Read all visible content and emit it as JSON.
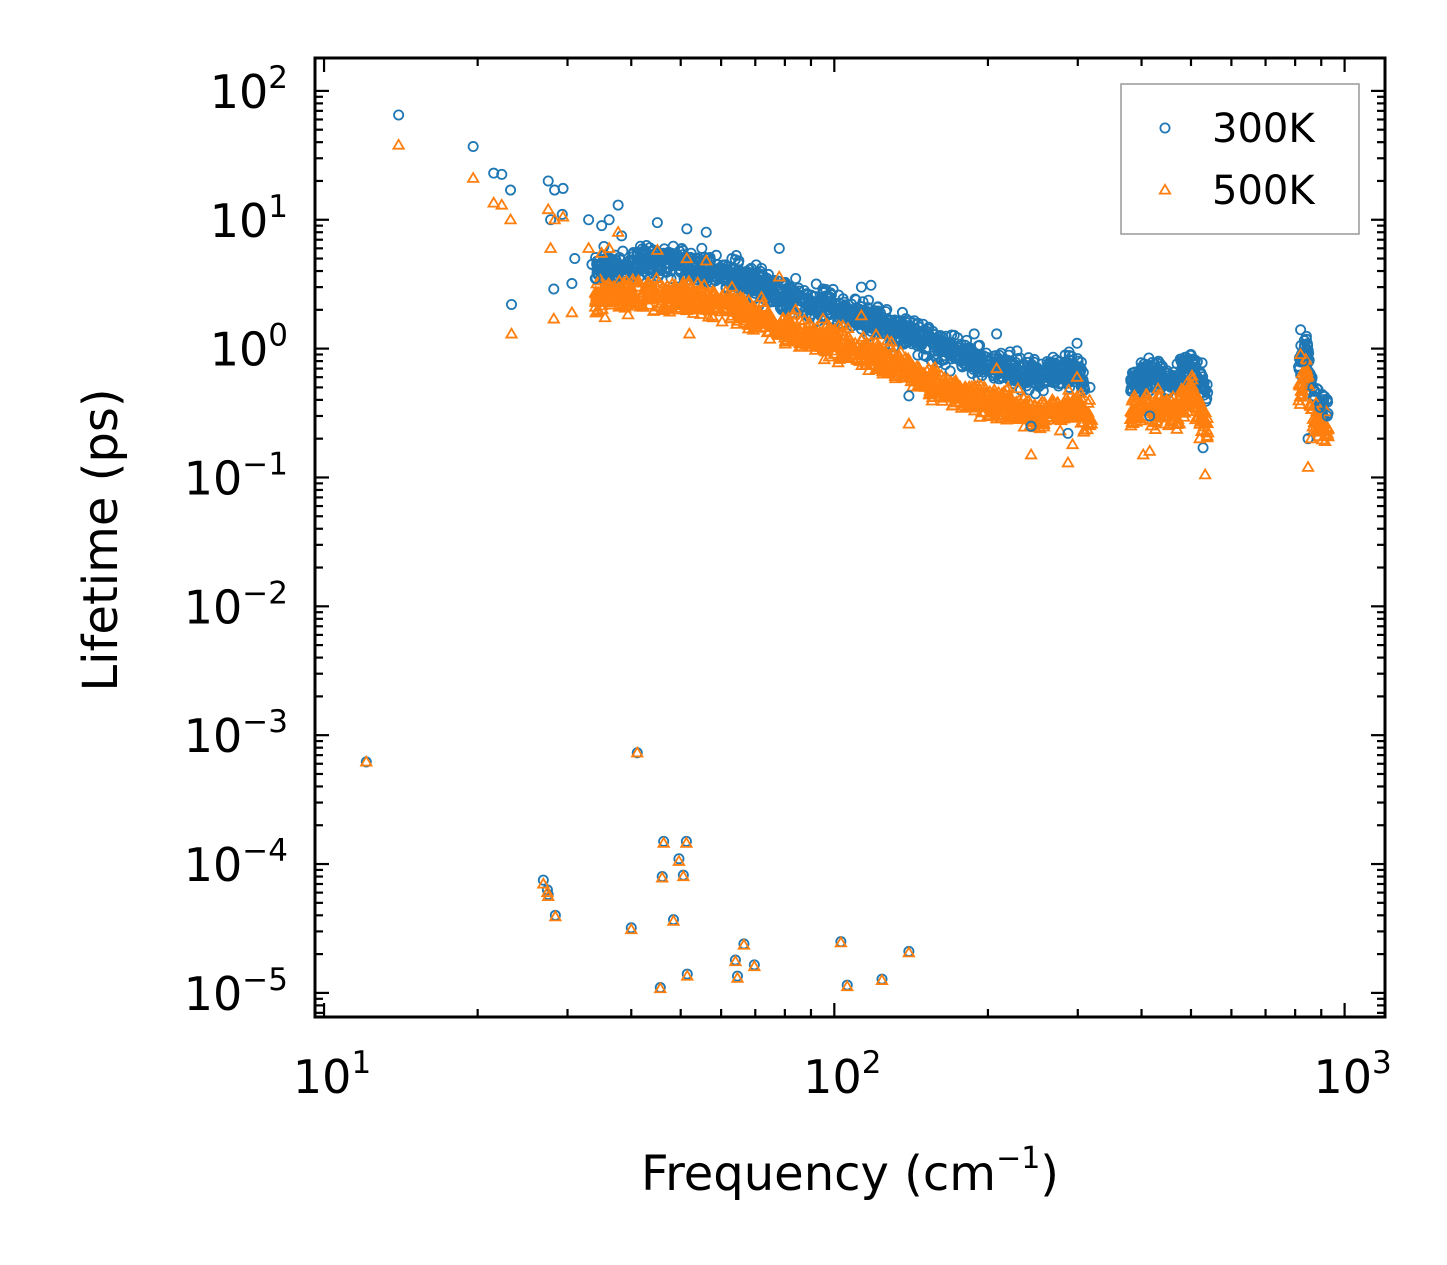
{
  "chart_data": {
    "type": "scatter",
    "title": "",
    "xlabel": "Frequency (cm",
    "xlabel_sup": "−1",
    "xlabel_close": ")",
    "ylabel": "Lifetime (ps)",
    "xscale": "log",
    "yscale": "log",
    "xlim": [
      9.6,
      1200
    ],
    "ylim": [
      6.5e-06,
      180
    ],
    "x_ticks": [
      {
        "base": "10",
        "exp": "1"
      },
      {
        "base": "10",
        "exp": "2"
      },
      {
        "base": "10",
        "exp": "3"
      }
    ],
    "y_ticks": [
      {
        "base": "10",
        "exp": "2"
      },
      {
        "base": "10",
        "exp": "1"
      },
      {
        "base": "10",
        "exp": "0"
      },
      {
        "base": "10",
        "exp": "−1"
      },
      {
        "base": "10",
        "exp": "−2"
      },
      {
        "base": "10",
        "exp": "−3"
      },
      {
        "base": "10",
        "exp": "−4"
      },
      {
        "base": "10",
        "exp": "−5"
      }
    ],
    "legend_position": "top-right",
    "series": [
      {
        "name": "300K",
        "marker": "circle",
        "color": "#1f77b4",
        "points": [
          [
            14.0,
            65
          ],
          [
            19.6,
            37
          ],
          [
            21.5,
            23
          ],
          [
            22.3,
            22.5
          ],
          [
            23.2,
            17
          ],
          [
            23.3,
            2.2
          ],
          [
            27.5,
            20
          ],
          [
            28.3,
            17
          ],
          [
            29.4,
            17.5
          ],
          [
            29.3,
            11
          ],
          [
            27.8,
            10
          ],
          [
            33.0,
            10
          ],
          [
            35.0,
            9
          ],
          [
            36.2,
            10
          ],
          [
            37.7,
            13
          ],
          [
            38.3,
            7.5
          ],
          [
            31.0,
            5
          ],
          [
            33.5,
            4.5
          ],
          [
            28.2,
            2.9
          ],
          [
            30.6,
            3.2
          ],
          [
            34.0,
            3.5
          ],
          [
            45.0,
            9.5
          ],
          [
            51.4,
            8.5
          ],
          [
            56.1,
            8
          ],
          [
            48.0,
            5.5
          ],
          [
            55.0,
            6
          ],
          [
            63.0,
            5
          ],
          [
            65.0,
            4.8
          ],
          [
            72.0,
            4.2
          ],
          [
            78.0,
            6
          ],
          [
            84.0,
            3.5
          ],
          [
            95.0,
            2.9
          ],
          [
            102.0,
            2.6
          ],
          [
            113.0,
            3
          ],
          [
            118.0,
            3.1
          ],
          [
            131.0,
            1.5
          ],
          [
            140.0,
            0.43
          ],
          [
            153.0,
            1.2
          ],
          [
            176.0,
            0.9
          ],
          [
            188.0,
            1.3
          ],
          [
            208.0,
            1.3
          ],
          [
            228.0,
            0.7
          ],
          [
            243.0,
            0.25
          ],
          [
            263.0,
            0.7
          ],
          [
            287.0,
            0.22
          ],
          [
            299.0,
            1.1
          ],
          [
            317.0,
            0.5
          ],
          [
            390.0,
            0.6
          ],
          [
            403.0,
            0.7
          ],
          [
            415.0,
            0.3
          ],
          [
            460.0,
            0.6
          ],
          [
            483.0,
            0.8
          ],
          [
            500.0,
            0.9
          ],
          [
            528.0,
            0.17
          ],
          [
            820.0,
            1.4
          ],
          [
            830.0,
            0.8
          ],
          [
            848.0,
            0.2
          ],
          [
            867.0,
            0.5
          ],
          [
            895.0,
            0.35
          ],
          [
            925.0,
            0.3
          ],
          [
            12.1,
            0.00062
          ],
          [
            41.1,
            0.00073
          ],
          [
            26.9,
            7.5e-05
          ],
          [
            27.4,
            6.3e-05
          ],
          [
            27.5,
            5.8e-05
          ],
          [
            28.4,
            4e-05
          ],
          [
            40.0,
            3.2e-05
          ],
          [
            45.6,
            1.1e-05
          ],
          [
            46.3,
            0.00015
          ],
          [
            46.0,
            8e-05
          ],
          [
            48.4,
            3.7e-05
          ],
          [
            49.6,
            0.00011
          ],
          [
            50.6,
            8.2e-05
          ],
          [
            51.3,
            0.00015
          ],
          [
            51.5,
            1.4e-05
          ],
          [
            64.0,
            1.8e-05
          ],
          [
            64.6,
            1.35e-05
          ],
          [
            66.5,
            2.4e-05
          ],
          [
            69.7,
            1.65e-05
          ],
          [
            103.0,
            2.5e-05
          ],
          [
            106.0,
            1.15e-05
          ],
          [
            124.0,
            1.28e-05
          ],
          [
            140.0,
            2.1e-05
          ]
        ]
      },
      {
        "name": "500K",
        "marker": "triangle",
        "color": "#ff7f0e",
        "points": [
          [
            14.0,
            38
          ],
          [
            19.6,
            21
          ],
          [
            21.5,
            13.5
          ],
          [
            22.3,
            13
          ],
          [
            23.2,
            10
          ],
          [
            23.3,
            1.3
          ],
          [
            27.5,
            12
          ],
          [
            28.3,
            10
          ],
          [
            29.4,
            10.5
          ],
          [
            27.8,
            6
          ],
          [
            33.0,
            6
          ],
          [
            35.0,
            5.5
          ],
          [
            36.2,
            6
          ],
          [
            37.7,
            8
          ],
          [
            28.2,
            1.7
          ],
          [
            30.6,
            1.9
          ],
          [
            34.0,
            2.1
          ],
          [
            45.0,
            5.8
          ],
          [
            51.4,
            5
          ],
          [
            56.1,
            4.8
          ],
          [
            52.0,
            1.3
          ],
          [
            63.0,
            3
          ],
          [
            72.0,
            2.5
          ],
          [
            78.0,
            3.6
          ],
          [
            84.0,
            2
          ],
          [
            95.0,
            1.7
          ],
          [
            102.0,
            1.5
          ],
          [
            113.0,
            1.8
          ],
          [
            140.0,
            0.26
          ],
          [
            153.0,
            0.7
          ],
          [
            188.0,
            0.5
          ],
          [
            208.0,
            0.7
          ],
          [
            243.0,
            0.15
          ],
          [
            263.0,
            0.35
          ],
          [
            287.0,
            0.13
          ],
          [
            293.0,
            0.18
          ],
          [
            299.0,
            0.6
          ],
          [
            390.0,
            0.35
          ],
          [
            403.0,
            0.15
          ],
          [
            415.0,
            0.16
          ],
          [
            460.0,
            0.3
          ],
          [
            500.0,
            0.5
          ],
          [
            520.0,
            0.2
          ],
          [
            533.0,
            0.105
          ],
          [
            820.0,
            0.9
          ],
          [
            848.0,
            0.12
          ],
          [
            860.0,
            0.2
          ],
          [
            895.0,
            0.25
          ],
          [
            12.1,
            0.00062
          ],
          [
            41.1,
            0.00073
          ],
          [
            26.9,
            7e-05
          ],
          [
            27.4,
            6e-05
          ],
          [
            27.5,
            5.6e-05
          ],
          [
            28.4,
            3.9e-05
          ],
          [
            40.0,
            3.1e-05
          ],
          [
            45.6,
            1.08e-05
          ],
          [
            46.3,
            0.000145
          ],
          [
            46.0,
            7.8e-05
          ],
          [
            48.4,
            3.6e-05
          ],
          [
            49.6,
            0.000105
          ],
          [
            50.6,
            8e-05
          ],
          [
            51.3,
            0.000145
          ],
          [
            51.5,
            1.35e-05
          ],
          [
            64.0,
            1.75e-05
          ],
          [
            64.6,
            1.3e-05
          ],
          [
            66.5,
            2.35e-05
          ],
          [
            69.7,
            1.6e-05
          ],
          [
            103.0,
            2.45e-05
          ],
          [
            106.0,
            1.12e-05
          ],
          [
            124.0,
            1.25e-05
          ],
          [
            140.0,
            2.05e-05
          ]
        ]
      }
    ],
    "dense_bands": [
      {
        "description": "continuous phonon band 300K",
        "series": "300K",
        "x_range": [
          34,
          310
        ],
        "trend_log10_y": [
          [
            34,
            0.62
          ],
          [
            45,
            0.68
          ],
          [
            60,
            0.6
          ],
          [
            80,
            0.42
          ],
          [
            100,
            0.32
          ],
          [
            130,
            0.17
          ],
          [
            160,
            0.02
          ],
          [
            200,
            -0.12
          ],
          [
            250,
            -0.22
          ],
          [
            300,
            -0.15
          ],
          [
            310,
            -0.3
          ]
        ]
      },
      {
        "description": "continuous phonon band 500K",
        "series": "500K",
        "x_range": [
          34,
          320
        ],
        "trend_log10_y": [
          [
            34,
            0.4
          ],
          [
            45,
            0.42
          ],
          [
            60,
            0.35
          ],
          [
            80,
            0.15
          ],
          [
            100,
            0.05
          ],
          [
            130,
            -0.1
          ],
          [
            160,
            -0.3
          ],
          [
            200,
            -0.42
          ],
          [
            250,
            -0.52
          ],
          [
            300,
            -0.45
          ],
          [
            320,
            -0.55
          ]
        ]
      },
      {
        "description": "high-frequency band 300K",
        "series": "300K",
        "x_range": [
          380,
          540
        ],
        "trend_log10_y": [
          [
            380,
            -0.25
          ],
          [
            420,
            -0.2
          ],
          [
            470,
            -0.25
          ],
          [
            500,
            -0.1
          ],
          [
            540,
            -0.35
          ]
        ]
      },
      {
        "description": "high-frequency band 500K",
        "series": "500K",
        "x_range": [
          380,
          540
        ],
        "trend_log10_y": [
          [
            380,
            -0.5
          ],
          [
            420,
            -0.45
          ],
          [
            470,
            -0.5
          ],
          [
            500,
            -0.35
          ],
          [
            540,
            -0.6
          ]
        ]
      },
      {
        "description": "top optical band 300K",
        "series": "300K",
        "x_range": [
          810,
          930
        ],
        "trend_log10_y": [
          [
            810,
            -0.2
          ],
          [
            840,
            0.05
          ],
          [
            860,
            -0.3
          ],
          [
            900,
            -0.45
          ],
          [
            930,
            -0.45
          ]
        ]
      },
      {
        "description": "top optical band 500K",
        "series": "500K",
        "x_range": [
          810,
          930
        ],
        "trend_log10_y": [
          [
            810,
            -0.4
          ],
          [
            840,
            -0.15
          ],
          [
            860,
            -0.5
          ],
          [
            900,
            -0.6
          ],
          [
            930,
            -0.62
          ]
        ]
      }
    ]
  }
}
